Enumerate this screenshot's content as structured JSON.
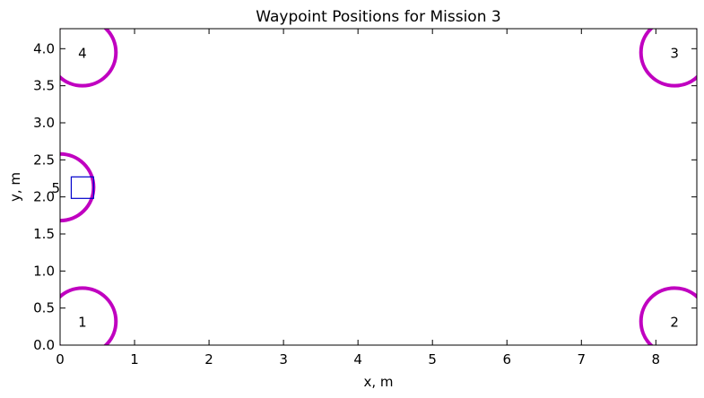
{
  "chart_data": {
    "type": "scatter",
    "title": "Waypoint Positions for Mission 3",
    "xlabel": "x, m",
    "ylabel": "y, m",
    "xlim": [
      0,
      8.55
    ],
    "ylim": [
      0,
      4.27
    ],
    "xticks": [
      0,
      1,
      2,
      3,
      4,
      5,
      6,
      7,
      8
    ],
    "yticks": [
      0.0,
      0.5,
      1.0,
      1.5,
      2.0,
      2.5,
      3.0,
      3.5,
      4.0
    ],
    "xtick_labels": [
      "0",
      "1",
      "2",
      "3",
      "4",
      "5",
      "6",
      "7",
      "8"
    ],
    "ytick_labels": [
      "0.0",
      "0.5",
      "1.0",
      "1.5",
      "2.0",
      "2.5",
      "3.0",
      "3.5",
      "4.0"
    ],
    "grid": false,
    "waypoints": [
      {
        "label": "1",
        "x": 0.3,
        "y": 0.32,
        "radius": 0.45,
        "color": "#c000c0"
      },
      {
        "label": "2",
        "x": 8.25,
        "y": 0.32,
        "radius": 0.45,
        "color": "#c000c0"
      },
      {
        "label": "3",
        "x": 8.25,
        "y": 3.95,
        "radius": 0.45,
        "color": "#c000c0"
      },
      {
        "label": "4",
        "x": 0.3,
        "y": 3.95,
        "radius": 0.45,
        "color": "#c000c0"
      },
      {
        "label": "5",
        "x": 0.0,
        "y": 2.13,
        "radius": 0.45,
        "color": "#c000c0"
      }
    ],
    "marker": {
      "x0": 0.15,
      "x1": 0.45,
      "y0": 1.98,
      "y1": 2.27,
      "color": "#0000cc"
    }
  }
}
